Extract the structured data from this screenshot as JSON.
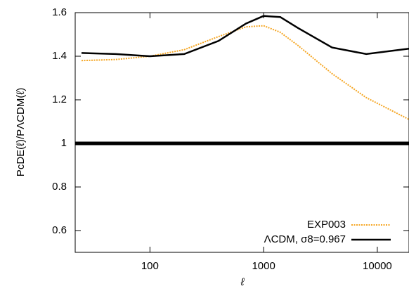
{
  "chart_data": {
    "type": "line",
    "xlabel": "ℓ",
    "ylabel": "PcDE(ℓ)/PΛCDM(ℓ)",
    "x": [
      25,
      50,
      100,
      200,
      400,
      700,
      1000,
      1400,
      2000,
      4000,
      8000,
      19000
    ],
    "series": [
      {
        "name": "EXP003",
        "color": "#f5a623",
        "dash": "dotted",
        "values": [
          1.38,
          1.385,
          1.4,
          1.43,
          1.49,
          1.535,
          1.54,
          1.51,
          1.45,
          1.32,
          1.21,
          1.11
        ]
      },
      {
        "name": "ΛCDM, σ8=0.967",
        "color": "#000000",
        "dash": "solid",
        "values": [
          1.415,
          1.41,
          1.4,
          1.41,
          1.47,
          1.55,
          1.585,
          1.58,
          1.53,
          1.44,
          1.41,
          1.435
        ]
      }
    ],
    "reference_line": 1,
    "xlog": true,
    "xlim": [
      22,
      19000
    ],
    "ylim": [
      0.5,
      1.6
    ],
    "xticks": [
      100,
      1000,
      10000
    ],
    "yticks": [
      0.6,
      0.8,
      1,
      1.2,
      1.4,
      1.6
    ],
    "legend": "lower right"
  }
}
